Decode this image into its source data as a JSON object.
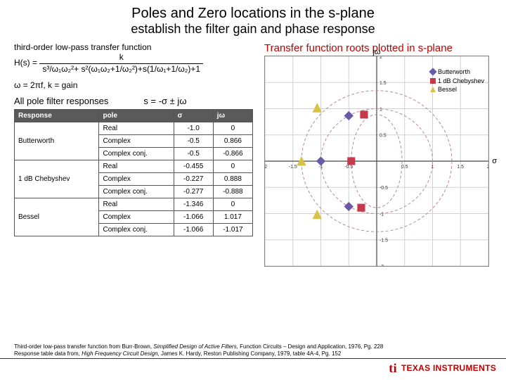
{
  "title": {
    "main": "Poles and Zero locations in the s-plane",
    "sub": "establish the filter gain and phase response"
  },
  "transfer_function": {
    "label": "third-order low-pass transfer function",
    "lhs": "H(s) =",
    "numerator": "k",
    "denominator": "s³/ω₁ω₂²+ s²(ω₁ω₂+1/ω₂²)+s(1/ω₁+1/ω₂)+1"
  },
  "omega_note": "ω = 2πf, k = gain",
  "allpole_label": "All pole filter responses",
  "s_equation": "s = -σ ± jω",
  "table": {
    "headers": [
      "Response",
      "pole",
      "σ",
      "jω"
    ],
    "groups": [
      {
        "response": "Butterworth",
        "rows": [
          {
            "pole": "Real",
            "sigma": "-1.0",
            "jw": "0"
          },
          {
            "pole": "Complex",
            "sigma": "-0.5",
            "jw": "0.866"
          },
          {
            "pole": "Complex conj.",
            "sigma": "-0.5",
            "jw": "-0.866"
          }
        ]
      },
      {
        "response": "1 dB Chebyshev",
        "rows": [
          {
            "pole": "Real",
            "sigma": "-0.455",
            "jw": "0"
          },
          {
            "pole": "Complex",
            "sigma": "-0.227",
            "jw": "0.888"
          },
          {
            "pole": "Complex conj.",
            "sigma": "-0.277",
            "jw": "-0.888"
          }
        ]
      },
      {
        "response": "Bessel",
        "rows": [
          {
            "pole": "Real",
            "sigma": "-1.346",
            "jw": "0"
          },
          {
            "pole": "Complex",
            "sigma": "-1.066",
            "jw": "1.017"
          },
          {
            "pole": "Complex conj.",
            "sigma": "-1.066",
            "jw": "-1.017"
          }
        ]
      }
    ]
  },
  "plot": {
    "title": "Transfer function roots plotted in s-plane",
    "axis_jw": "jω",
    "axis_sigma": "σ",
    "xlim": [
      -2,
      2
    ],
    "ylim": [
      -2,
      2
    ],
    "grid_color": "#d0d0d0",
    "axis_color": "#444444",
    "ellipse_color": "#b9879a",
    "ellipse_dash": "4 3",
    "series": [
      {
        "name": "Butterworth",
        "shape": "diamond",
        "color": "#6b5aa8",
        "points": [
          [
            -1.0,
            0
          ],
          [
            -0.5,
            0.866
          ],
          [
            -0.5,
            -0.866
          ]
        ]
      },
      {
        "name": "1 dB Chebyshev",
        "shape": "square",
        "color": "#c43a4b",
        "points": [
          [
            -0.455,
            0
          ],
          [
            -0.227,
            0.888
          ],
          [
            -0.277,
            -0.888
          ]
        ]
      },
      {
        "name": "Bessel",
        "shape": "triangle",
        "color": "#d9c24a",
        "points": [
          [
            -1.346,
            0
          ],
          [
            -1.066,
            1.017
          ],
          [
            -1.066,
            -1.017
          ]
        ]
      }
    ],
    "marker_size": 6
  },
  "footnotes": {
    "line1_a": "Third-order low-pass transfer function from Burr-Brown, ",
    "line1_i": "Simplified Design of Active Filters,",
    "line1_b": " Function Circuits – Design and Application, 1976, Pg. 228",
    "line2_a": "Response table data from, ",
    "line2_i": "High Frequency Circuit Design,",
    "line2_b": " James K. Hardy, Reston Publishing Company, 1979, table 4A-4, Pg. 152"
  },
  "logo": {
    "text": "TEXAS INSTRUMENTS",
    "badge": "ti"
  }
}
